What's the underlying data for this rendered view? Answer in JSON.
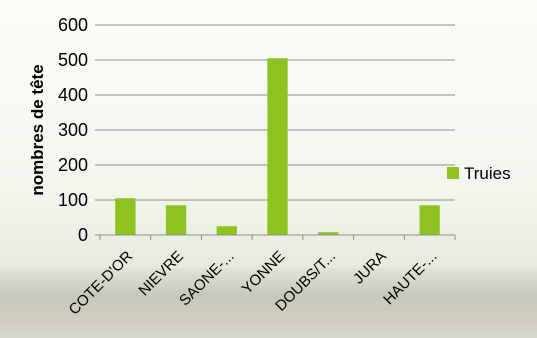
{
  "chart_data": {
    "type": "bar",
    "categories": [
      "COTE-D'OR",
      "NIEVRE",
      "SAONE-...",
      "YONNE",
      "DOUBS/T...",
      "JURA",
      "HAUTE-..."
    ],
    "series": [
      {
        "name": "Truies",
        "values": [
          105,
          85,
          25,
          505,
          8,
          0,
          85
        ],
        "color": "#8dc21f"
      }
    ],
    "ylabel": "nombres de tête",
    "ylim": [
      0,
      600
    ],
    "yticks": [
      0,
      100,
      200,
      300,
      400,
      500,
      600
    ],
    "grid": true,
    "legend_position": "right"
  }
}
